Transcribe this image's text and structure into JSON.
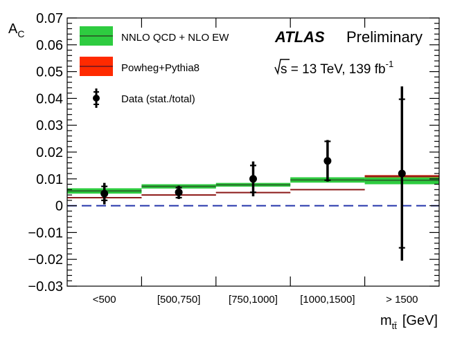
{
  "chart_data": {
    "type": "bar",
    "title": "",
    "xlabel": "m_tt̄ [GeV]",
    "xlabel_main": "m",
    "xlabel_sub": "tt̄",
    "xlabel_unit": "[GeV]",
    "ylabel": "A_C",
    "ylabel_main": "A",
    "ylabel_sub": "C",
    "ylim": [
      -0.03,
      0.07
    ],
    "yticks": [
      "−0.03",
      "−0.02",
      "−0.01",
      "0",
      "0.01",
      "0.02",
      "0.03",
      "0.04",
      "0.05",
      "0.06",
      "0.07"
    ],
    "categories": [
      "<500",
      "[500,750]",
      "[750,1000]",
      "[1000,1500]",
      "> 1500"
    ],
    "legend_position": "top-left",
    "series": [
      {
        "name": "NNLO QCD + NLO EW",
        "kind": "band",
        "color": "#2ecc40",
        "line_color": "#2a6b2a",
        "values": [
          0.0055,
          0.0072,
          0.0078,
          0.0096,
          0.0095
        ],
        "band_half_width": [
          0.001,
          0.0008,
          0.0007,
          0.001,
          0.0015
        ]
      },
      {
        "name": "Powheg+Pythia8",
        "kind": "band",
        "color": "#ff2a00",
        "line_color": "#8b1a1a",
        "values": [
          0.003,
          0.004,
          0.0049,
          0.006,
          0.011
        ],
        "band_half_width": [
          0.0002,
          0.0002,
          0.0002,
          0.0002,
          0.0004
        ]
      },
      {
        "name": "Data (stat./total)",
        "kind": "points",
        "color": "#000000",
        "values": [
          0.0045,
          0.005,
          0.01,
          0.0167,
          0.012
        ],
        "stat_low": [
          0.002,
          0.003,
          0.005,
          0.0095,
          -0.0157
        ],
        "stat_high": [
          0.0072,
          0.0067,
          0.015,
          0.024,
          0.0397
        ],
        "total_low": [
          0.0005,
          0.0025,
          0.0035,
          0.009,
          -0.0205
        ],
        "total_high": [
          0.0085,
          0.0075,
          0.0165,
          0.0245,
          0.0445
        ]
      }
    ],
    "reference_line": {
      "y": 0,
      "style": "dashed",
      "color": "#2233aa"
    },
    "annotations": {
      "experiment": "ATLAS",
      "status": "Preliminary",
      "energy_prefix": "s",
      "energy_text": " = 13 TeV, 139 fb",
      "energy_exp": "-1"
    }
  }
}
